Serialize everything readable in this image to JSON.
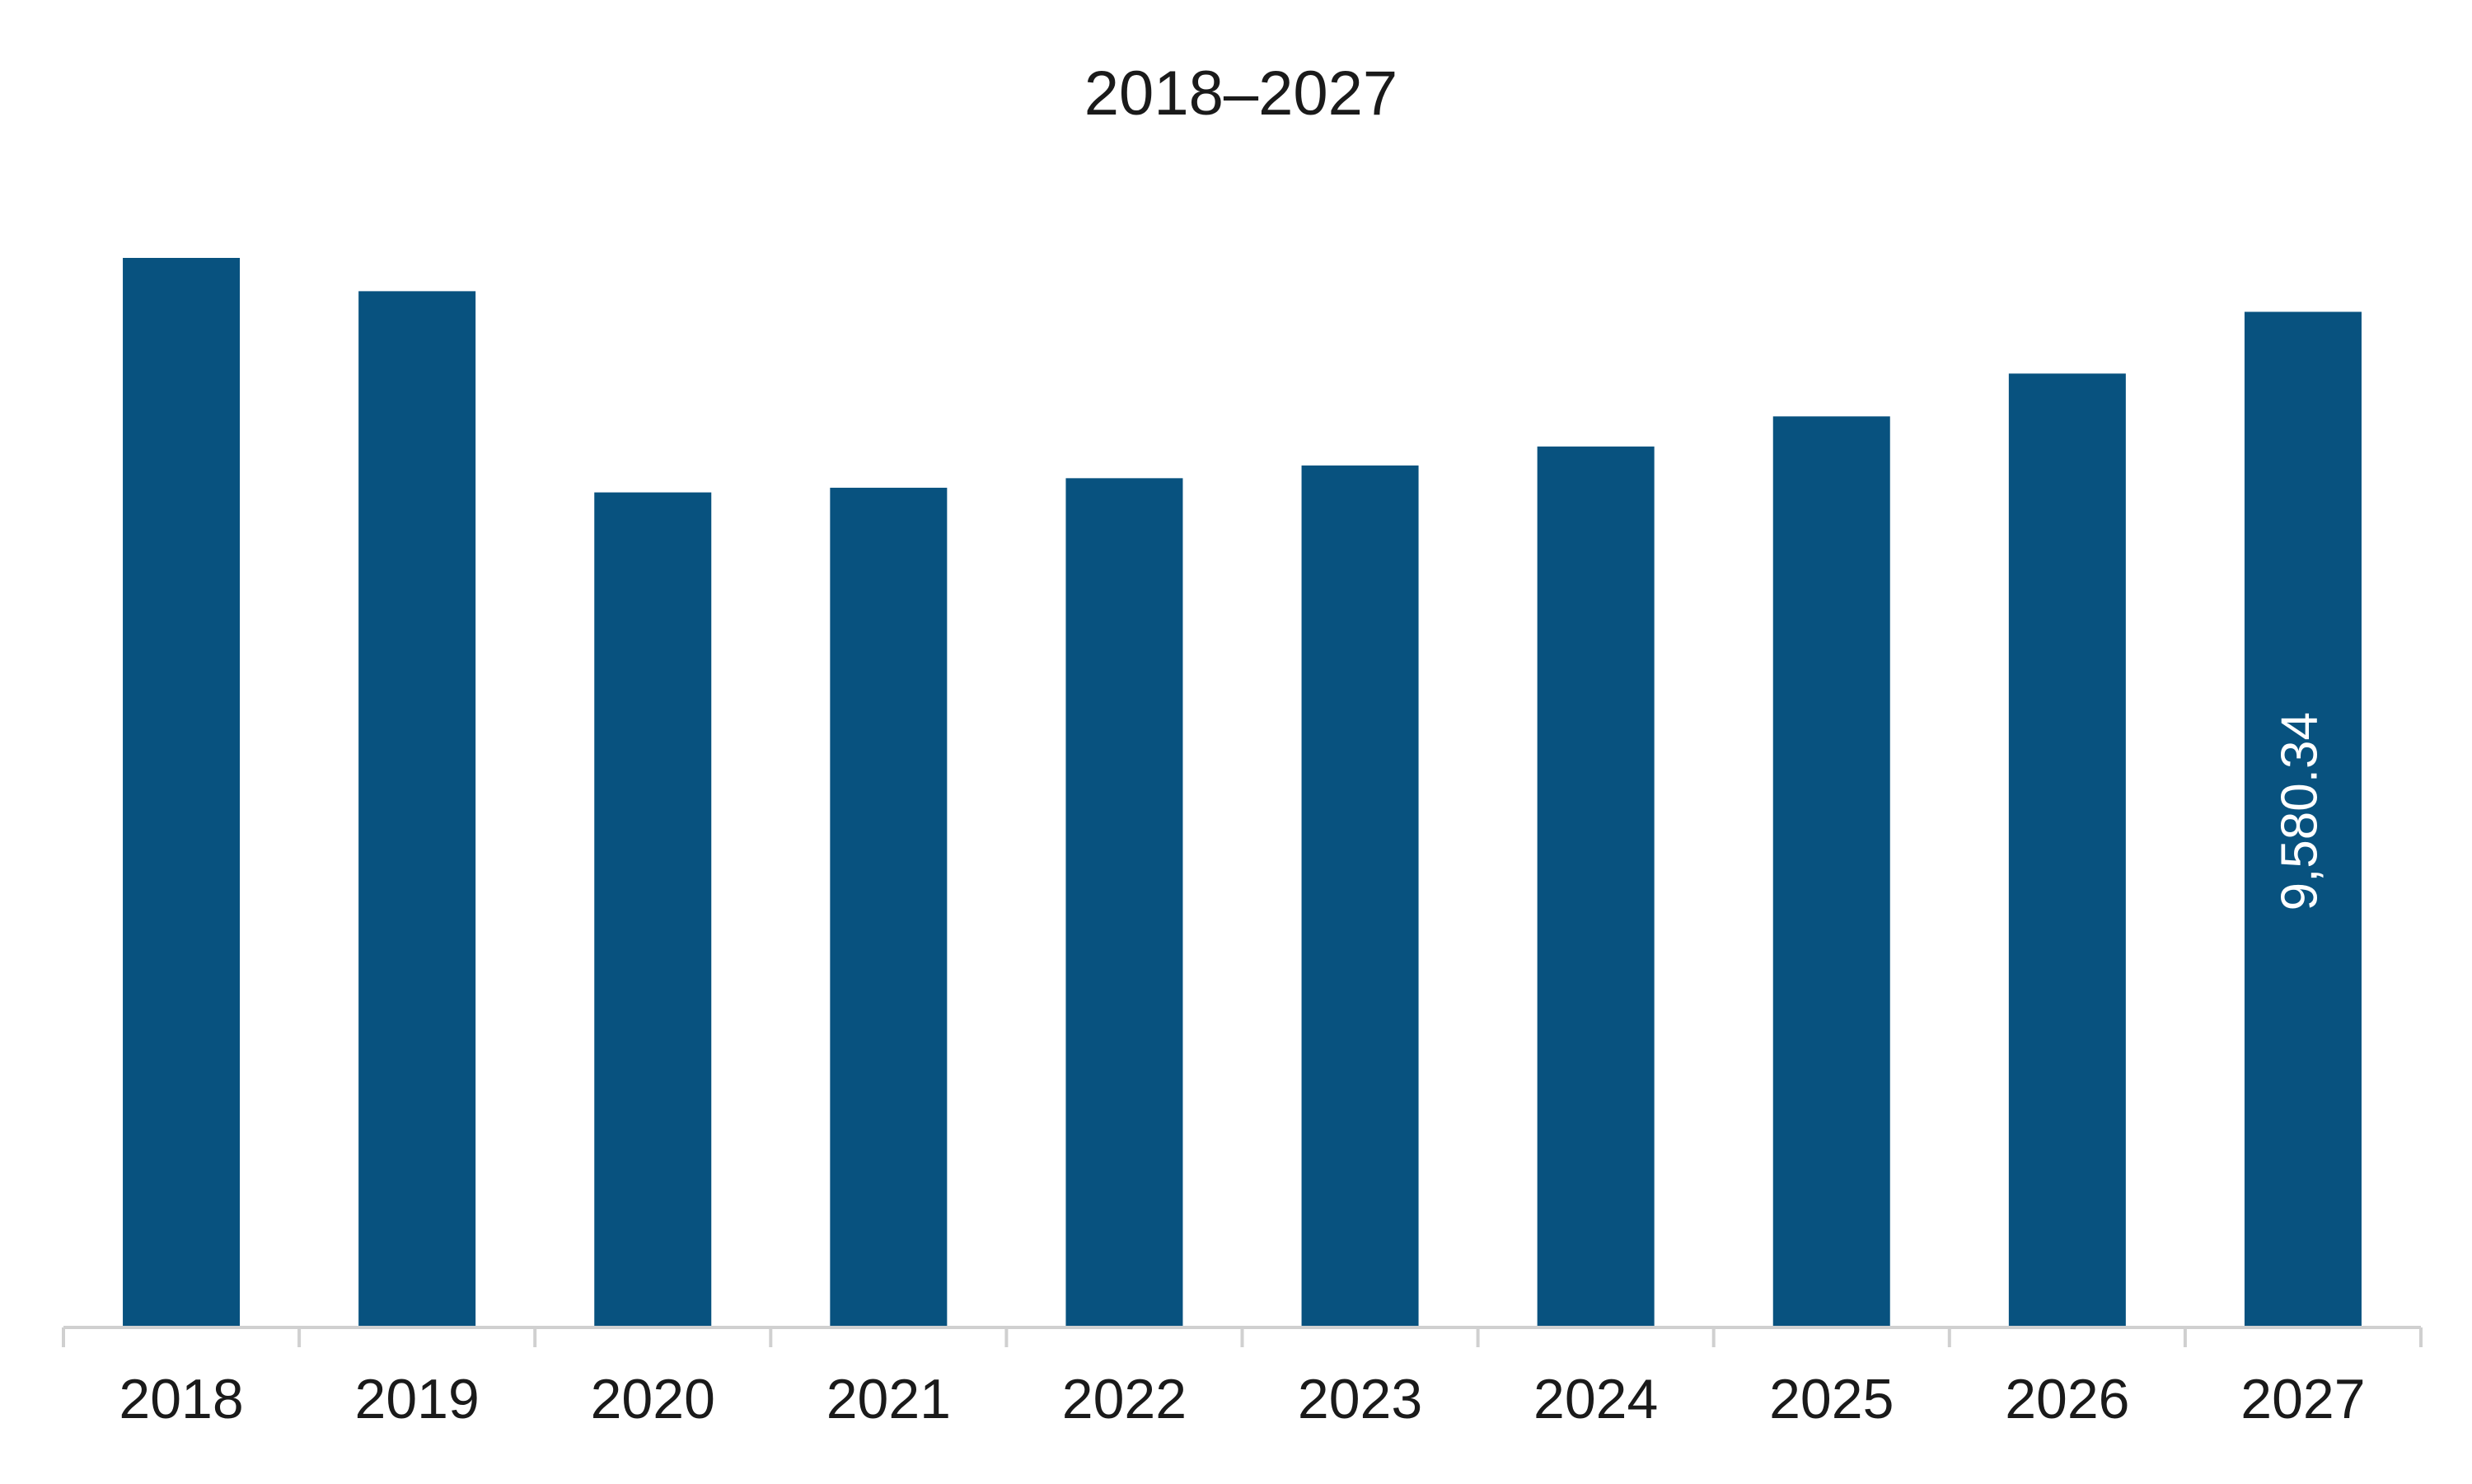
{
  "chart_data": {
    "type": "bar",
    "title": "2018–2027",
    "categories": [
      "2018",
      "2019",
      "2020",
      "2021",
      "2022",
      "2023",
      "2024",
      "2025",
      "2026",
      "2027"
    ],
    "values": [
      10089,
      9775,
      7877,
      7921,
      8011,
      8131,
      8310,
      8594,
      8998,
      9580.34
    ],
    "value_labels": [
      null,
      null,
      null,
      null,
      null,
      null,
      null,
      null,
      null,
      "9,580.34"
    ],
    "color": "#08527f",
    "grid": false
  }
}
